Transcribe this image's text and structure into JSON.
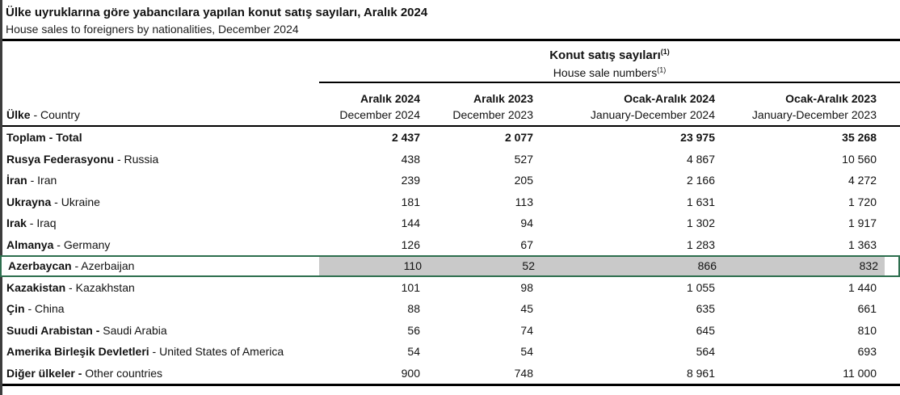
{
  "page": {
    "title_tr": "Ülke uyruklarına göre yabancılara yapılan konut satış sayıları, Aralık 2024",
    "title_en": "House sales to foreigners by nationalities, December 2024"
  },
  "table": {
    "group_header": {
      "tr": "Konut satış sayıları",
      "en": "House sale numbers",
      "footnote_mark": "(1)"
    },
    "country_column": {
      "tr": "Ülke",
      "sep": " - ",
      "en": "Country"
    },
    "columns": [
      {
        "tr": "Aralık 2024",
        "en": "December 2024"
      },
      {
        "tr": "Aralık 2023",
        "en": "December 2023"
      },
      {
        "tr": "Ocak-Aralık 2024",
        "en": "January-December 2024"
      },
      {
        "tr": "Ocak-Aralık 2023",
        "en": "January-December 2023"
      }
    ],
    "rows": [
      {
        "tr": "Toplam",
        "sep": " - ",
        "en": "Total",
        "values": [
          "2 437",
          "2 077",
          "23 975",
          "35 268"
        ],
        "bold": true,
        "bold_sep": true,
        "highlighted": false
      },
      {
        "tr": "Rusya Federasyonu",
        "sep": " - ",
        "en": "Russia",
        "values": [
          "438",
          "527",
          "4 867",
          "10 560"
        ],
        "bold": false,
        "bold_sep": false,
        "highlighted": false
      },
      {
        "tr": "İran",
        "sep": " - ",
        "en": "Iran",
        "values": [
          "239",
          "205",
          "2 166",
          "4 272"
        ],
        "bold": false,
        "bold_sep": false,
        "highlighted": false
      },
      {
        "tr": "Ukrayna",
        "sep": " - ",
        "en": "Ukraine",
        "values": [
          "181",
          "113",
          "1 631",
          "1 720"
        ],
        "bold": false,
        "bold_sep": false,
        "highlighted": false
      },
      {
        "tr": "Irak",
        "sep": " - ",
        "en": "Iraq",
        "values": [
          "144",
          "94",
          "1 302",
          "1 917"
        ],
        "bold": false,
        "bold_sep": false,
        "highlighted": false
      },
      {
        "tr": "Almanya",
        "sep": " - ",
        "en": "Germany",
        "values": [
          "126",
          "67",
          "1 283",
          "1 363"
        ],
        "bold": false,
        "bold_sep": false,
        "highlighted": false
      },
      {
        "tr": "Azerbaycan",
        "sep": " - ",
        "en": "Azerbaijan",
        "values": [
          "110",
          "52",
          "866",
          "832"
        ],
        "bold": false,
        "bold_sep": false,
        "highlighted": true
      },
      {
        "tr": "Kazakistan",
        "sep": " - ",
        "en": "Kazakhstan",
        "values": [
          "101",
          "98",
          "1 055",
          "1 440"
        ],
        "bold": false,
        "bold_sep": false,
        "highlighted": false
      },
      {
        "tr": "Çin",
        "sep": " - ",
        "en": "China",
        "values": [
          "88",
          "45",
          "635",
          "661"
        ],
        "bold": false,
        "bold_sep": false,
        "highlighted": false
      },
      {
        "tr": "Suudi Arabistan",
        "sep": " - ",
        "en": "Saudi Arabia",
        "values": [
          "56",
          "74",
          "645",
          "810"
        ],
        "bold": false,
        "bold_sep": true,
        "highlighted": false
      },
      {
        "tr": "Amerika Birleşik Devletleri",
        "sep": " - ",
        "en": "United States of America",
        "values": [
          "54",
          "54",
          "564",
          "693"
        ],
        "bold": false,
        "bold_sep": false,
        "highlighted": false
      },
      {
        "tr": "Diğer ülkeler",
        "sep": " - ",
        "en": "Other countries",
        "values": [
          "900",
          "748",
          "8 961",
          "11 000"
        ],
        "bold": false,
        "bold_sep": true,
        "highlighted": false
      }
    ]
  },
  "colors": {
    "highlight_border": "#2d6e4e",
    "highlight_cell_bg": "#c9c9c9",
    "rule_color": "#000000",
    "left_border": "#3d3d3d"
  }
}
